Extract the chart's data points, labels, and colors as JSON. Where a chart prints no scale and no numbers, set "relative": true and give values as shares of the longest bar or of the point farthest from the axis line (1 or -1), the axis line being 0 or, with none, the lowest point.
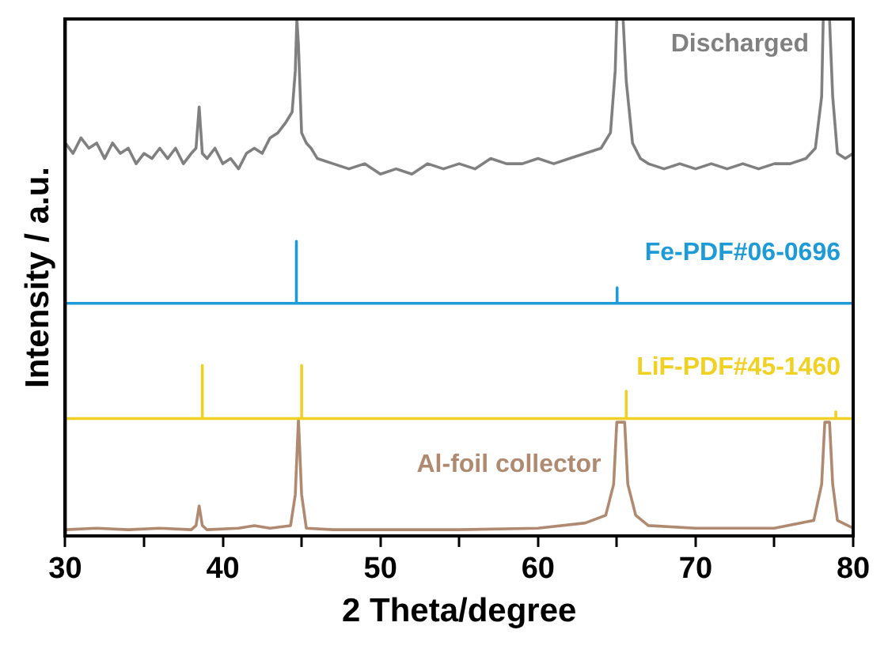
{
  "chart_data": {
    "type": "line",
    "relative": true,
    "xlabel": "2 Theta/degree",
    "ylabel": "Intensity / a.u.",
    "xlim": [
      30,
      80
    ],
    "xticks": [
      30,
      {
        "value": 35,
        "label": null
      },
      40,
      {
        "value": 45,
        "label": null
      },
      50,
      {
        "value": 55,
        "label": null
      },
      60,
      {
        "value": 65,
        "label": null
      },
      70,
      {
        "value": 75,
        "label": null
      },
      80
    ],
    "grid": false,
    "legend": false,
    "marker": "none",
    "line_style": "solid",
    "series": [
      {
        "name": "Discharged",
        "color": "#808080",
        "x": [
          30,
          30.5,
          31,
          31.5,
          32,
          32.5,
          33,
          33.5,
          34,
          34.5,
          35,
          35.5,
          36,
          36.5,
          37,
          37.5,
          38,
          38.3,
          38.5,
          38.7,
          39,
          39.5,
          40,
          40.5,
          41,
          41.5,
          42,
          42.5,
          43,
          43.5,
          44,
          44.4,
          44.6,
          44.7,
          44.8,
          45,
          45.3,
          45.6,
          46,
          47,
          48,
          49,
          50,
          51,
          52,
          53,
          54,
          55,
          56,
          57,
          58,
          59,
          60,
          61,
          62,
          63,
          64,
          64.6,
          64.9,
          65,
          65.4,
          65.6,
          66,
          66.5,
          67,
          68,
          69,
          70,
          71,
          72,
          73,
          74,
          75,
          76,
          77,
          77.6,
          78,
          78.1,
          78.5,
          78.7,
          79,
          79.5,
          80
        ],
        "values": [
          0.76,
          0.74,
          0.77,
          0.75,
          0.76,
          0.73,
          0.76,
          0.74,
          0.75,
          0.72,
          0.74,
          0.73,
          0.75,
          0.73,
          0.75,
          0.72,
          0.74,
          0.75,
          0.83,
          0.74,
          0.73,
          0.75,
          0.72,
          0.73,
          0.71,
          0.74,
          0.75,
          0.74,
          0.77,
          0.78,
          0.8,
          0.82,
          0.9,
          1,
          0.95,
          0.78,
          0.76,
          0.75,
          0.73,
          0.72,
          0.71,
          0.72,
          0.7,
          0.71,
          0.7,
          0.72,
          0.71,
          0.72,
          0.71,
          0.73,
          0.72,
          0.72,
          0.73,
          0.72,
          0.73,
          0.74,
          0.75,
          0.78,
          0.9,
          1,
          1,
          0.88,
          0.76,
          0.73,
          0.72,
          0.71,
          0.72,
          0.71,
          0.72,
          0.71,
          0.72,
          0.71,
          0.72,
          0.72,
          0.73,
          0.75,
          0.85,
          1,
          1,
          0.85,
          0.74,
          0.73,
          0.74
        ]
      },
      {
        "name": "Fe-PDF#06-0696",
        "color": "#1e9bd7",
        "x": [
          30,
          44.67,
          44.67,
          44.67,
          65.02,
          65.02,
          65.02,
          80
        ],
        "values": [
          0.45,
          0.45,
          0.57,
          0.45,
          0.45,
          0.48,
          0.45,
          0.45
        ]
      },
      {
        "name": "LiF-PDF#45-1460",
        "color": "#f0d020",
        "x": [
          30,
          38.7,
          38.7,
          38.7,
          45,
          45,
          45,
          65.6,
          65.6,
          65.6,
          78.9,
          78.9,
          78.9,
          80
        ],
        "values": [
          0.227,
          0.227,
          0.33,
          0.227,
          0.227,
          0.33,
          0.227,
          0.227,
          0.28,
          0.227,
          0.227,
          0.24,
          0.227,
          0.227
        ]
      },
      {
        "name": "Al-foil collector",
        "color": "#b08a70",
        "x": [
          30,
          32,
          34,
          36,
          38,
          38.3,
          38.5,
          38.7,
          39,
          41,
          42,
          43,
          44.3,
          44.6,
          44.8,
          45,
          45.3,
          47,
          50,
          55,
          60,
          63,
          64.3,
          64.8,
          65,
          65.5,
          65.7,
          66.2,
          67,
          70,
          75,
          77.5,
          78,
          78.2,
          78.5,
          78.7,
          79,
          80
        ],
        "values": [
          0.012,
          0.015,
          0.012,
          0.015,
          0.012,
          0.02,
          0.058,
          0.02,
          0.012,
          0.015,
          0.02,
          0.015,
          0.02,
          0.08,
          0.227,
          0.08,
          0.015,
          0.012,
          0.012,
          0.012,
          0.015,
          0.025,
          0.04,
          0.1,
          0.22,
          0.22,
          0.1,
          0.04,
          0.02,
          0.015,
          0.015,
          0.03,
          0.1,
          0.22,
          0.22,
          0.1,
          0.03,
          0.015
        ]
      }
    ]
  }
}
